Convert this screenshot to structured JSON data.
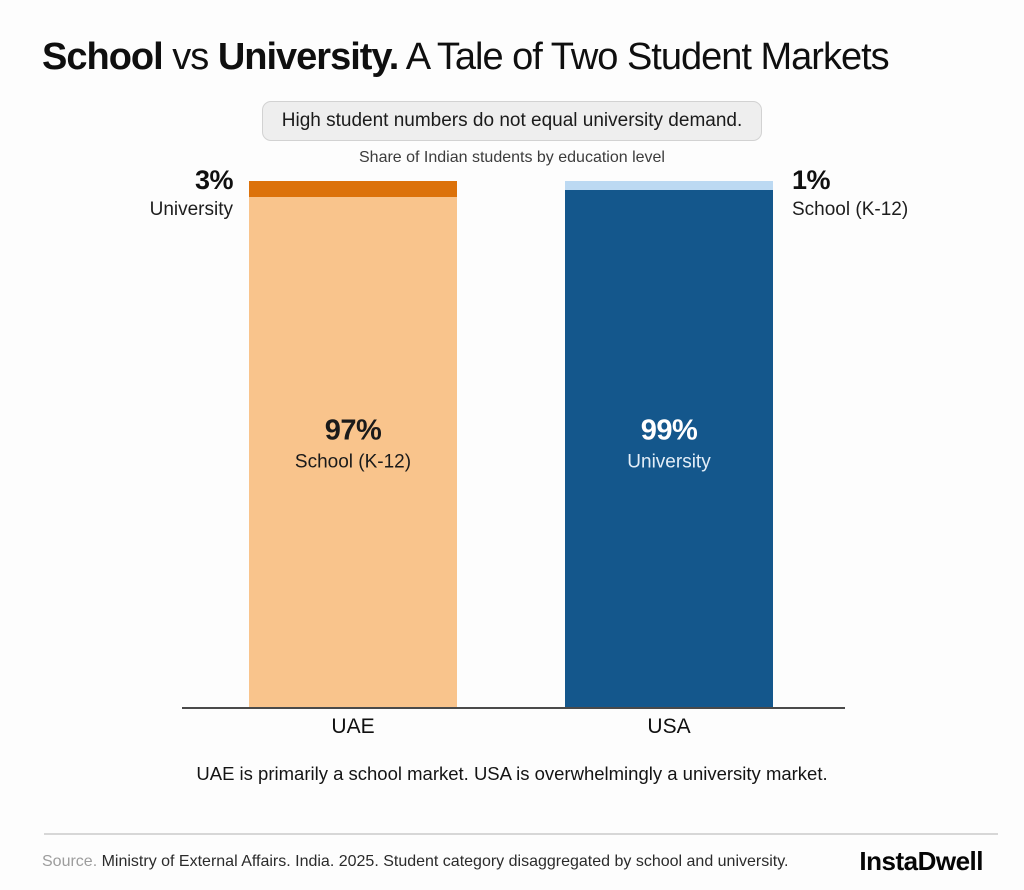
{
  "title": {
    "school": "School",
    "vs": " vs ",
    "university": "University.",
    "rest": " A Tale of Two Student Markets"
  },
  "badge": "High student numbers do not equal university demand.",
  "subtitle": "Share of Indian students by education level",
  "chart_data": {
    "type": "bar",
    "stacked": true,
    "normalized_percent": true,
    "title": "Share of Indian students by education level",
    "categories": [
      "UAE",
      "USA"
    ],
    "series": [
      {
        "name": "School (K-12)",
        "values": [
          97,
          1
        ],
        "colors": [
          "#f9c48c",
          "#bcd9f2"
        ]
      },
      {
        "name": "University",
        "values": [
          3,
          99
        ],
        "colors": [
          "#dc720b",
          "#14578c"
        ]
      }
    ],
    "ylim": [
      0,
      100
    ],
    "grid": false,
    "legend": "none",
    "axis_line_color": "#4a4a4a",
    "bars": [
      {
        "category": "UAE",
        "segments_top_to_bottom": [
          {
            "label": "University",
            "value": 3,
            "color": "#dc720b"
          },
          {
            "label": "School (K-12)",
            "value": 97,
            "color": "#f9c48c"
          }
        ],
        "inner_label": {
          "pct": "97%",
          "text": "School (K-12)"
        },
        "annotation": {
          "pct": "3%",
          "text": "University",
          "side": "left"
        }
      },
      {
        "category": "USA",
        "segments_top_to_bottom": [
          {
            "label": "School (K-12)",
            "value": 1,
            "color": "#bcd9f2"
          },
          {
            "label": "University",
            "value": 99,
            "color": "#14578c"
          }
        ],
        "inner_label": {
          "pct": "99%",
          "text": "University"
        },
        "annotation": {
          "pct": "1%",
          "text": "School (K-12)",
          "side": "right"
        }
      }
    ]
  },
  "caption": "UAE is primarily a school market. USA is overwhelmingly a university market.",
  "footer": {
    "source_label": "Source.",
    "source_text": " Ministry of External Affairs. India. 2025. Student category disaggregated by school and university.",
    "brand": "InstaDwell"
  }
}
